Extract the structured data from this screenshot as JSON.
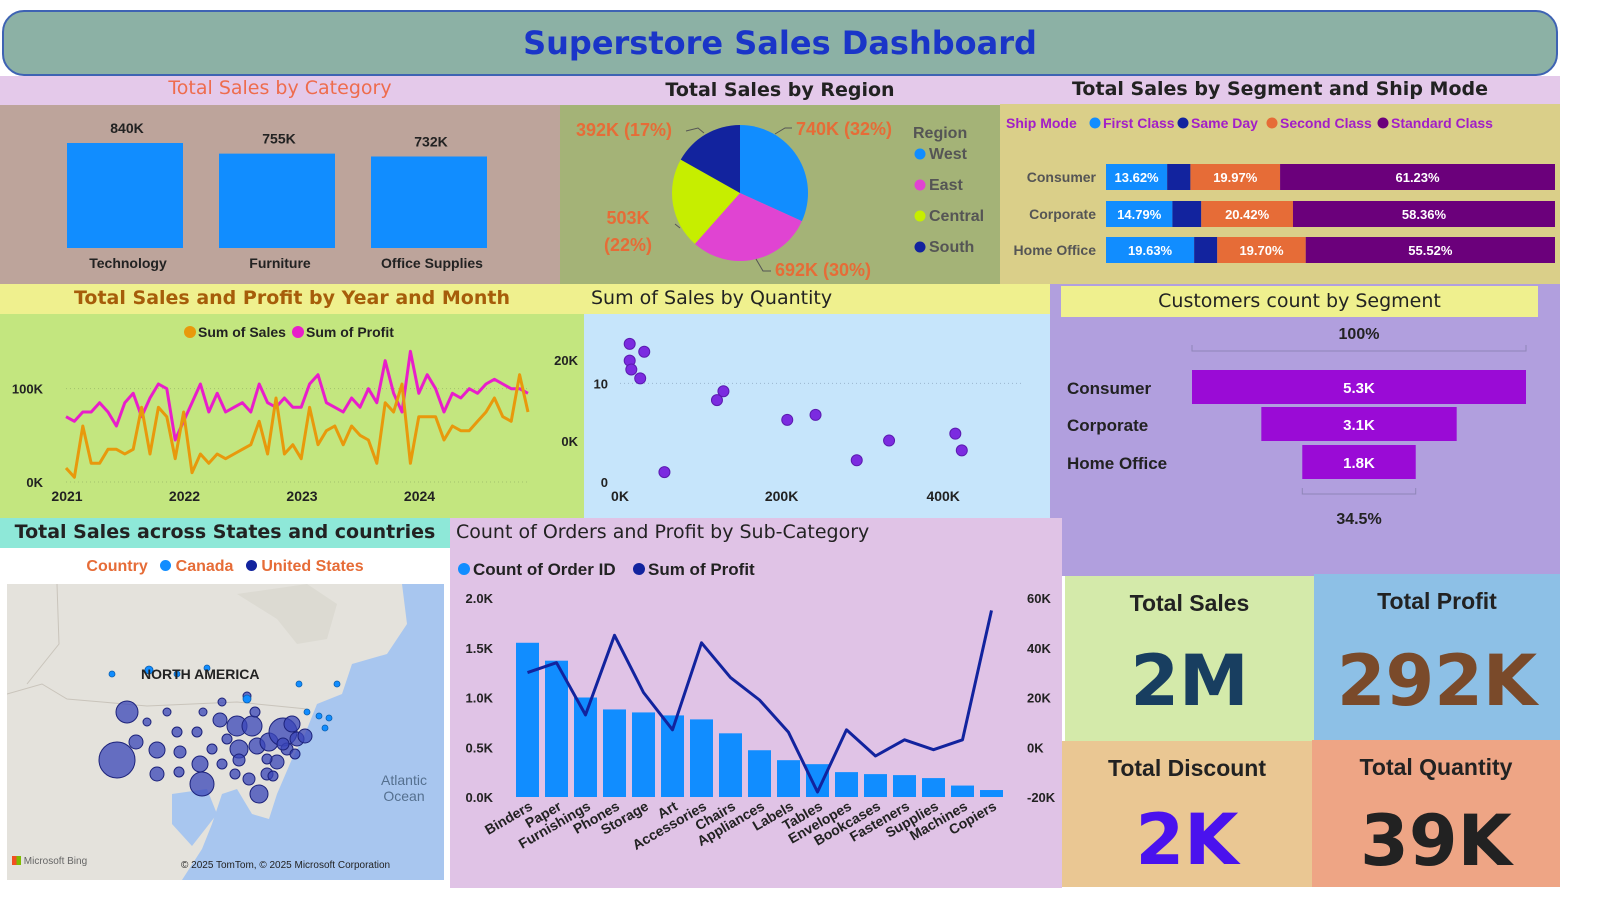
{
  "header": {
    "title": "Superstore Sales Dashboard"
  },
  "colors": {
    "header_bg": "#8cb1a5",
    "title": "#1a35c8",
    "bar_blue": "#118dff",
    "navy": "#12239e",
    "orange": "#e66c37",
    "purple": "#6b007b",
    "magenta": "#e044d2",
    "lime": "#c6ee00",
    "sales_line": "#e8990c",
    "profit_line": "#e81eca",
    "funnel": "#9a0bd6"
  },
  "kpis": {
    "total_sales": {
      "title": "Total Sales",
      "value": "2M"
    },
    "total_profit": {
      "title": "Total Profit",
      "value": "292K"
    },
    "total_discount": {
      "title": "Total Discount",
      "value": "2K"
    },
    "total_quantity": {
      "title": "Total Quantity",
      "value": "39K"
    }
  },
  "map": {
    "title": "Total Sales across States and countries",
    "legend_title": "Country",
    "legend": [
      "Canada",
      "United States"
    ],
    "label_continent": "NORTH AMERICA",
    "label_ocean": "Atlantic Ocean",
    "attribution": "© 2025 TomTom, © 2025 Microsoft Corporation",
    "bing": "Microsoft Bing"
  },
  "chart_data": [
    {
      "id": "category",
      "type": "bar",
      "title": "Total Sales by Category",
      "categories": [
        "Technology",
        "Furniture",
        "Office Supplies"
      ],
      "values": [
        840000,
        755000,
        732000
      ],
      "labels": [
        "840K",
        "755K",
        "732K"
      ]
    },
    {
      "id": "region",
      "type": "pie",
      "title": "Total Sales by Region",
      "legend_title": "Region",
      "categories": [
        "West",
        "East",
        "Central",
        "South"
      ],
      "values": [
        740000,
        692000,
        503000,
        392000
      ],
      "labels": [
        "740K (32%)",
        "692K (30%)",
        "503K (22%)",
        "392K (17%)"
      ]
    },
    {
      "id": "segment_ship",
      "type": "bar",
      "title": "Total Sales by Segment and Ship Mode",
      "legend_title": "Ship Mode",
      "categories": [
        "Consumer",
        "Corporate",
        "Home Office"
      ],
      "series": [
        {
          "name": "First Class",
          "values": [
            13.62,
            14.79,
            19.63
          ],
          "labels": [
            "13.62%",
            "14.79%",
            "19.63%"
          ]
        },
        {
          "name": "Same Day",
          "values": [
            5.18,
            6.43,
            5.15
          ],
          "labels": [
            "",
            "",
            ""
          ]
        },
        {
          "name": "Second Class",
          "values": [
            19.97,
            20.42,
            19.7
          ],
          "labels": [
            "19.97%",
            "20.42%",
            "19.70%"
          ]
        },
        {
          "name": "Standard Class",
          "values": [
            61.23,
            58.36,
            55.52
          ],
          "labels": [
            "61.23%",
            "58.36%",
            "55.52%"
          ]
        }
      ]
    },
    {
      "id": "trend",
      "type": "line",
      "title": "Total Sales and Profit by Year and Month",
      "x_ticks": [
        "2021",
        "2022",
        "2023",
        "2024"
      ],
      "y_ticks": [
        "0K",
        "100K"
      ],
      "ylim": [
        0,
        150000
      ],
      "series": [
        {
          "name": "Sum of Sales",
          "values": [
            15000,
            5000,
            60000,
            20000,
            20000,
            35000,
            35000,
            30000,
            35000,
            80000,
            30000,
            80000,
            70000,
            25000,
            75000,
            10000,
            30000,
            20000,
            30000,
            25000,
            30000,
            35000,
            40000,
            65000,
            30000,
            90000,
            30000,
            40000,
            25000,
            80000,
            40000,
            55000,
            60000,
            40000,
            60000,
            50000,
            45000,
            20000,
            85000,
            75000,
            105000,
            20000,
            70000,
            70000,
            70000,
            45000,
            60000,
            55000,
            55000,
            65000,
            75000,
            90000,
            70000,
            65000,
            115000,
            75000
          ]
        },
        {
          "name": "Sum of Profit",
          "values": [
            70000,
            65000,
            75000,
            75000,
            85000,
            75000,
            60000,
            85000,
            95000,
            70000,
            90000,
            105000,
            100000,
            45000,
            65000,
            85000,
            105000,
            75000,
            95000,
            75000,
            80000,
            85000,
            75000,
            105000,
            85000,
            80000,
            90000,
            80000,
            80000,
            105000,
            115000,
            85000,
            80000,
            75000,
            90000,
            80000,
            100000,
            85000,
            130000,
            95000,
            75000,
            140000,
            95000,
            115000,
            100000,
            75000,
            95000,
            90000,
            100000,
            95000,
            105000,
            110000,
            105000,
            100000,
            100000,
            95000
          ]
        }
      ]
    },
    {
      "id": "quantity",
      "type": "scatter",
      "title": "Sum of Sales by Quantity",
      "x_ticks": [
        "0K",
        "200K",
        "400K"
      ],
      "y_ticks_left": [
        "0",
        "10"
      ],
      "y_ticks_right": [
        "0K",
        "20K"
      ],
      "xlim": [
        0,
        500000
      ],
      "ylim": [
        0,
        15
      ],
      "points": [
        {
          "x": 12000,
          "y": 14
        },
        {
          "x": 30000,
          "y": 13.2
        },
        {
          "x": 12000,
          "y": 12.3
        },
        {
          "x": 14000,
          "y": 11.4
        },
        {
          "x": 25000,
          "y": 10.5
        },
        {
          "x": 55000,
          "y": 1
        },
        {
          "x": 128000,
          "y": 9.2
        },
        {
          "x": 120000,
          "y": 8.3
        },
        {
          "x": 207000,
          "y": 6.3
        },
        {
          "x": 242000,
          "y": 6.8
        },
        {
          "x": 293000,
          "y": 2.2
        },
        {
          "x": 333000,
          "y": 4.2
        },
        {
          "x": 415000,
          "y": 4.9
        },
        {
          "x": 423000,
          "y": 3.2
        }
      ]
    },
    {
      "id": "customers",
      "type": "bar",
      "title": "Customers count by Segment",
      "categories": [
        "Consumer",
        "Corporate",
        "Home Office"
      ],
      "values": [
        5300,
        3100,
        1800
      ],
      "labels": [
        "5.3K",
        "3.1K",
        "1.8K"
      ],
      "top_label": "100%",
      "bottom_label": "34.5%"
    },
    {
      "id": "subcategory",
      "type": "bar",
      "title": "Count of Orders and Profit by Sub-Category",
      "categories": [
        "Binders",
        "Paper",
        "Furnishings",
        "Phones",
        "Storage",
        "Art",
        "Accessories",
        "Chairs",
        "Appliances",
        "Labels",
        "Tables",
        "Envelopes",
        "Bookcases",
        "Fasteners",
        "Supplies",
        "Machines",
        "Copiers"
      ],
      "y_ticks_left": [
        "0.0K",
        "0.5K",
        "1.0K",
        "1.5K",
        "2.0K"
      ],
      "y_ticks_right": [
        "-20K",
        "0K",
        "20K",
        "40K",
        "60K"
      ],
      "ylim_left": [
        0,
        2000
      ],
      "ylim_right": [
        -20000,
        60000
      ],
      "series": [
        {
          "name": "Count of Order ID",
          "values": [
            1550,
            1370,
            1000,
            880,
            850,
            820,
            780,
            640,
            470,
            370,
            330,
            250,
            230,
            220,
            190,
            115,
            70
          ]
        },
        {
          "name": "Sum of Profit",
          "values": [
            30000,
            34000,
            13000,
            45000,
            22000,
            7000,
            42000,
            28000,
            19000,
            6000,
            -18000,
            7000,
            -3500,
            3000,
            -1000,
            3000,
            55000
          ]
        }
      ]
    }
  ]
}
